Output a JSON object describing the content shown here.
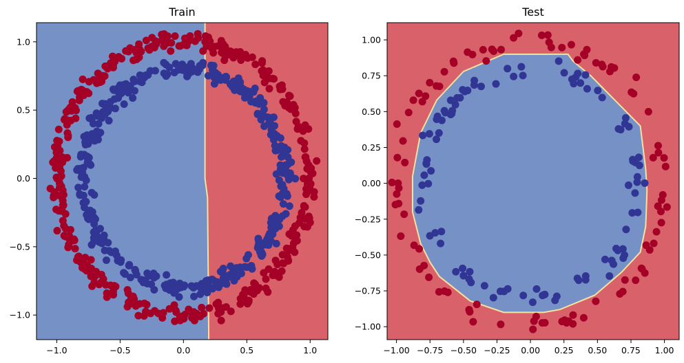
{
  "chart_data": [
    {
      "type": "scatter",
      "title": "Train",
      "xlabel": "",
      "ylabel": "",
      "xlim": [
        -1.16,
        1.14
      ],
      "ylim": [
        -1.18,
        1.14
      ],
      "xticks": [
        -1.0,
        -0.5,
        0.0,
        0.5,
        1.0
      ],
      "xtick_labels": [
        "−1.0",
        "−0.5",
        "0.0",
        "0.5",
        "1.0"
      ],
      "yticks": [
        -1.0,
        -0.5,
        0.0,
        0.5,
        1.0
      ],
      "ytick_labels": [
        "−1.0",
        "−0.5",
        "0.0",
        "0.5",
        "1.0"
      ],
      "decision_boundary": {
        "description": "vertical line",
        "points": [
          [
            0.17,
            1.14
          ],
          [
            0.17,
            0.0
          ],
          [
            0.19,
            -0.14
          ],
          [
            0.2,
            -1.18
          ]
        ],
        "left_class_color": "#7591c5",
        "right_class_color": "#d8616a",
        "boundary_color": "#f5e2a0"
      },
      "series": [
        {
          "class": "outer",
          "color": "#a50026",
          "radius_mean": 1.0,
          "radius_spread": 0.04,
          "count": 400
        },
        {
          "class": "inner",
          "color": "#313695",
          "radius_mean": 0.8,
          "radius_spread": 0.04,
          "count": 400
        }
      ]
    },
    {
      "type": "scatter",
      "title": "Test",
      "xlabel": "",
      "ylabel": "",
      "xlim": [
        -1.07,
        1.11
      ],
      "ylim": [
        -1.09,
        1.12
      ],
      "xticks": [
        -1.0,
        -0.75,
        -0.5,
        -0.25,
        0.0,
        0.25,
        0.5,
        0.75,
        1.0
      ],
      "xtick_labels": [
        "−1.00",
        "−0.75",
        "−0.50",
        "−0.25",
        "0.00",
        "0.25",
        "0.50",
        "0.75",
        "1.00"
      ],
      "yticks": [
        -1.0,
        -0.75,
        -0.5,
        -0.25,
        0.0,
        0.25,
        0.5,
        0.75,
        1.0
      ],
      "ytick_labels": [
        "−1.00",
        "−0.75",
        "−0.50",
        "−0.25",
        "0.00",
        "0.25",
        "0.50",
        "0.75",
        "1.00"
      ],
      "decision_boundary": {
        "description": "closed octagon-like polygon enclosing inner class",
        "points": [
          [
            -0.2,
            0.9
          ],
          [
            0.28,
            0.9
          ],
          [
            0.32,
            0.85
          ],
          [
            0.45,
            0.75
          ],
          [
            0.82,
            0.4
          ],
          [
            0.86,
            0.1
          ],
          [
            0.87,
            -0.05
          ],
          [
            0.86,
            -0.3
          ],
          [
            0.82,
            -0.48
          ],
          [
            0.68,
            -0.62
          ],
          [
            0.48,
            -0.78
          ],
          [
            0.22,
            -0.88
          ],
          [
            0.1,
            -0.9
          ],
          [
            -0.2,
            -0.9
          ],
          [
            -0.45,
            -0.82
          ],
          [
            -0.68,
            -0.65
          ],
          [
            -0.75,
            -0.55
          ],
          [
            -0.82,
            -0.42
          ],
          [
            -0.88,
            -0.2
          ],
          [
            -0.88,
            0.05
          ],
          [
            -0.82,
            0.35
          ],
          [
            -0.7,
            0.58
          ],
          [
            -0.5,
            0.78
          ]
        ],
        "inside_class_color": "#7591c5",
        "outside_class_color": "#d8616a",
        "boundary_color": "#f5e2a0"
      },
      "series": [
        {
          "class": "outer",
          "color": "#a50026",
          "radius_mean": 1.0,
          "radius_spread": 0.04,
          "count": 100
        },
        {
          "class": "inner",
          "color": "#313695",
          "radius_mean": 0.8,
          "radius_spread": 0.04,
          "count": 100
        }
      ]
    }
  ]
}
